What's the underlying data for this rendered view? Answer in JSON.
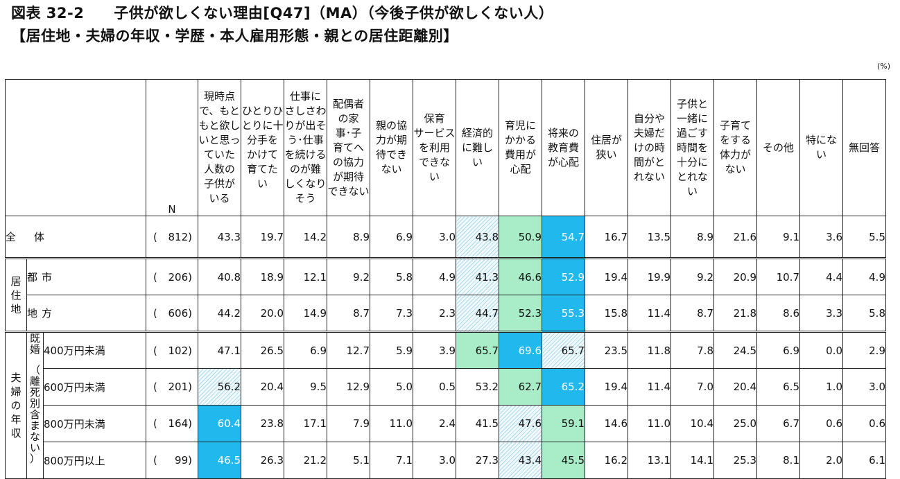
{
  "title": {
    "line1": "図表 32-2　　子供が欲しくない理由[Q47]（MA）（今後子供が欲しくない人）",
    "line2": "【居住地・夫婦の年収・学歴・本人雇用形態・親との居住距離別】"
  },
  "unit_label": "(%)",
  "n_label": "N",
  "columns": [
    {
      "lines": [
        "現時点",
        "で、もと",
        "もと欲し",
        "いと思っ",
        "ていた",
        "人数の",
        "子供が",
        "いる"
      ]
    },
    {
      "lines": [
        "ひとりひ",
        "とりに十",
        "分手を",
        "かけて",
        "育てた",
        "い"
      ]
    },
    {
      "lines": [
        "仕事に",
        "さしさわ",
        "りが出そ",
        "う･仕事",
        "を続ける",
        "のが難",
        "しくなり",
        "そう"
      ]
    },
    {
      "lines": [
        "配偶者",
        "の家",
        "事･子",
        "育てへ",
        "の協力",
        "が期待",
        "できない"
      ]
    },
    {
      "lines": [
        "親の協",
        "力が期",
        "待でき",
        "ない"
      ]
    },
    {
      "lines": [
        "保育",
        "サービス",
        "を利用",
        "できな",
        "い"
      ]
    },
    {
      "lines": [
        "経済的",
        "に難し",
        "い"
      ]
    },
    {
      "lines": [
        "育児に",
        "かかる",
        "費用が",
        "心配"
      ]
    },
    {
      "lines": [
        "将来の",
        "教育費",
        "が心配"
      ]
    },
    {
      "lines": [
        "住居が",
        "狭い"
      ]
    },
    {
      "lines": [
        "自分や",
        "夫婦だ",
        "けの時",
        "間がと",
        "れない"
      ]
    },
    {
      "lines": [
        "子供と",
        "一緒に",
        "過ごす",
        "時間を",
        "十分に",
        "とれな",
        "い"
      ]
    },
    {
      "lines": [
        "子育て",
        "をする",
        "体力が",
        "ない"
      ]
    },
    {
      "lines": [
        "その他"
      ]
    },
    {
      "lines": [
        "特にな",
        "い"
      ]
    },
    {
      "lines": [
        "無回答"
      ]
    }
  ],
  "rows": {
    "all": {
      "label": "全体",
      "n_open": "(",
      "n": "812)",
      "values": [
        "43.3",
        "19.7",
        "14.2",
        "8.9",
        "6.9",
        "3.0",
        "43.8",
        "50.9",
        "54.7",
        "16.7",
        "13.5",
        "8.9",
        "21.6",
        "9.1",
        "3.6",
        "5.5"
      ],
      "hl": {
        "6": "hatch",
        "7": "green",
        "8": "cyan"
      }
    },
    "residence": {
      "group_label": [
        "居",
        "住",
        "地"
      ],
      "items": [
        {
          "label": "都市",
          "n_open": "(",
          "n": "206)",
          "values": [
            "40.8",
            "18.9",
            "12.1",
            "9.2",
            "5.8",
            "4.9",
            "41.3",
            "46.6",
            "52.9",
            "19.4",
            "19.9",
            "9.2",
            "20.9",
            "10.7",
            "4.4",
            "4.9"
          ],
          "hl": {
            "6": "hatch",
            "7": "green",
            "8": "cyan"
          }
        },
        {
          "label": "地方",
          "n_open": "(",
          "n": "606)",
          "values": [
            "44.2",
            "20.0",
            "14.9",
            "8.7",
            "7.3",
            "2.3",
            "44.7",
            "52.3",
            "55.3",
            "15.8",
            "11.4",
            "8.7",
            "21.8",
            "8.6",
            "3.3",
            "5.8"
          ],
          "hl": {
            "6": "hatch",
            "7": "green",
            "8": "cyan"
          }
        }
      ]
    },
    "income": {
      "group_label": [
        "夫",
        "婦",
        "の",
        "年",
        "収"
      ],
      "side_top": [
        "既",
        "婚"
      ],
      "side_bottom": [
        "（",
        "離",
        "死",
        "別",
        "含",
        "ま",
        "な",
        "い",
        "）"
      ],
      "items": [
        {
          "label": "400万円未満",
          "n_open": "(",
          "n": "102)",
          "values": [
            "47.1",
            "26.5",
            "6.9",
            "12.7",
            "5.9",
            "3.9",
            "65.7",
            "69.6",
            "65.7",
            "23.5",
            "11.8",
            "7.8",
            "24.5",
            "6.9",
            "0.0",
            "2.9"
          ],
          "hl": {
            "6": "green",
            "7": "cyan",
            "8": "hatch"
          }
        },
        {
          "label": "600万円未満",
          "n_open": "(",
          "n": "201)",
          "values": [
            "56.2",
            "20.4",
            "9.5",
            "12.9",
            "5.0",
            "0.5",
            "53.2",
            "62.7",
            "65.2",
            "19.4",
            "11.4",
            "7.0",
            "20.4",
            "6.5",
            "1.0",
            "3.0"
          ],
          "hl": {
            "0": "hatch",
            "7": "green",
            "8": "cyan"
          }
        },
        {
          "label": "800万円未満",
          "n_open": "(",
          "n": "164)",
          "values": [
            "60.4",
            "23.8",
            "17.1",
            "7.9",
            "11.0",
            "2.4",
            "41.5",
            "47.6",
            "59.1",
            "14.6",
            "11.0",
            "10.4",
            "25.0",
            "6.7",
            "0.6",
            "0.6"
          ],
          "hl": {
            "0": "cyan",
            "7": "hatch",
            "8": "green"
          }
        },
        {
          "label": "800万円以上",
          "n_open": "(",
          "n": "99)",
          "values": [
            "46.5",
            "26.3",
            "21.2",
            "5.1",
            "7.1",
            "3.0",
            "27.3",
            "43.4",
            "45.5",
            "16.2",
            "13.1",
            "14.1",
            "25.3",
            "8.1",
            "2.0",
            "6.1"
          ],
          "hl": {
            "0": "cyan",
            "7": "hatch",
            "8": "green"
          }
        }
      ]
    }
  },
  "colors": {
    "cyan": "#21b8ee",
    "green": "#a8ecc8",
    "hatch": "#a9d9ef"
  }
}
